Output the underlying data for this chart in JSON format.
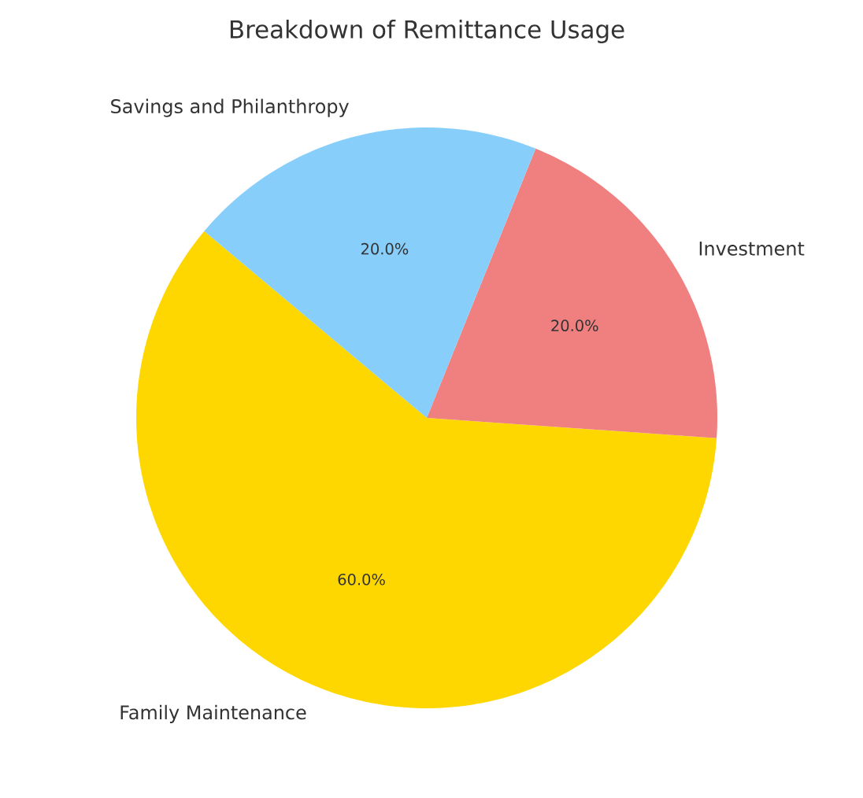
{
  "chart_data": {
    "type": "pie",
    "title": "Breakdown of Remittance Usage",
    "categories": [
      "Family Maintenance",
      "Investment",
      "Savings and Philanthropy"
    ],
    "values": [
      60,
      20,
      20
    ],
    "colors": [
      "#ffd700",
      "#f08080",
      "#87cefa"
    ],
    "value_labels": [
      "60.0%",
      "20.0%",
      "20.0%"
    ]
  }
}
